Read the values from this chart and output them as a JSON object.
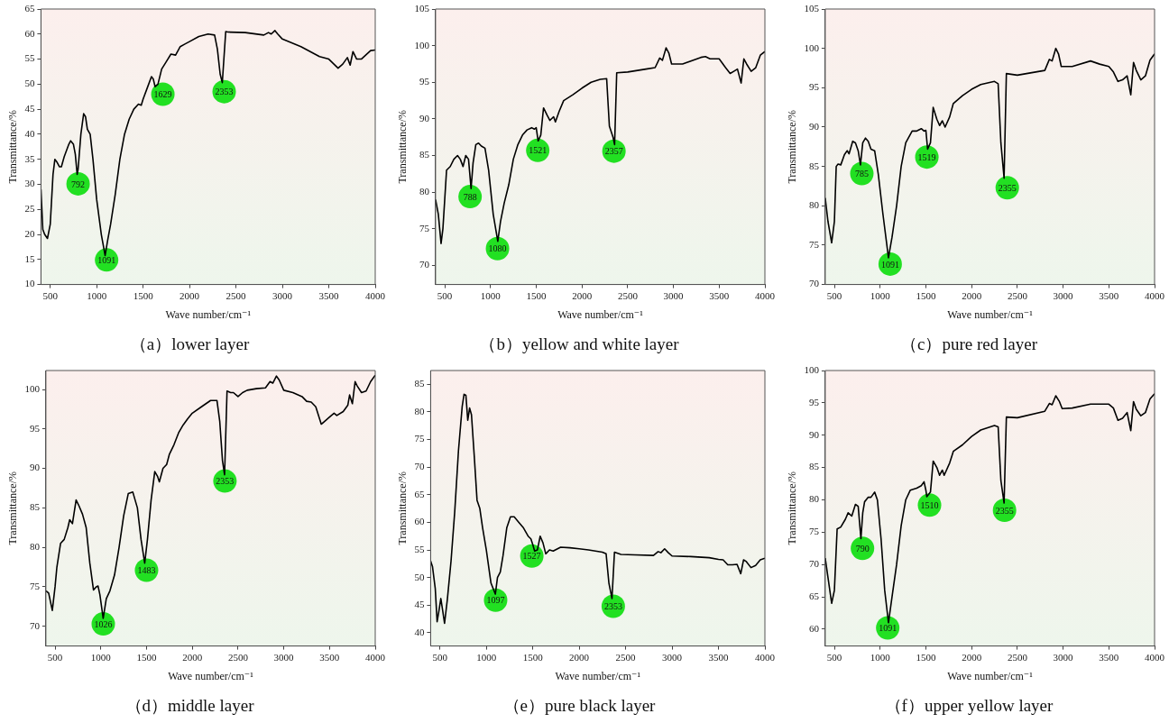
{
  "chart_data": [
    {
      "type": "line",
      "title": "（a）lower layer",
      "xlabel": "Wave number/cm⁻¹",
      "ylabel": "Transmittance/%",
      "xlim": [
        400,
        4000
      ],
      "xticks": [
        500,
        1000,
        1500,
        2000,
        2500,
        3000,
        3500,
        4000
      ],
      "ylim": [
        10,
        65
      ],
      "yticks": [
        10,
        15,
        20,
        25,
        30,
        35,
        40,
        45,
        50,
        55,
        60,
        65
      ],
      "grid": false,
      "legend": false,
      "marker": "none",
      "line_style": "solid",
      "x": [
        400,
        420,
        440,
        470,
        500,
        530,
        550,
        570,
        600,
        620,
        650,
        700,
        720,
        750,
        770,
        790,
        800,
        830,
        860,
        880,
        900,
        930,
        960,
        1000,
        1050,
        1091,
        1120,
        1150,
        1200,
        1250,
        1300,
        1350,
        1400,
        1450,
        1480,
        1500,
        1550,
        1590,
        1610,
        1629,
        1660,
        1700,
        1750,
        1800,
        1850,
        1900,
        1950,
        2000,
        2100,
        2200,
        2270,
        2300,
        2330,
        2353,
        2370,
        2390,
        2410,
        2600,
        2800,
        2850,
        2880,
        2920,
        2950,
        3000,
        3200,
        3400,
        3500,
        3600,
        3650,
        3700,
        3730,
        3760,
        3800,
        3850,
        3950,
        4000
      ],
      "series": [
        {
          "color": "#000000",
          "values": [
            29,
            21,
            20,
            19.2,
            22,
            32,
            35,
            34.5,
            33.5,
            33.5,
            35.5,
            38,
            38.7,
            38,
            36,
            32,
            33,
            40,
            44.1,
            43.5,
            41,
            40,
            35,
            27,
            20,
            15.8,
            19,
            22,
            28,
            35,
            40,
            43,
            45,
            46,
            45.8,
            47,
            49.5,
            51.5,
            51,
            49.5,
            50,
            53,
            54.5,
            56,
            55.8,
            57.5,
            58,
            58.5,
            59.5,
            60,
            59.8,
            57,
            52,
            50.3,
            55,
            60.5,
            60.4,
            60.3,
            59.8,
            60.3,
            60,
            60.7,
            60,
            59,
            57.5,
            55.5,
            55,
            53.2,
            54,
            55.3,
            53.8,
            56.5,
            55,
            55,
            56.7,
            56.8
          ]
        }
      ],
      "annotations": [
        {
          "text": "792",
          "x": 800,
          "y": 30.1
        },
        {
          "text": "1091",
          "x": 1107,
          "y": 14.9
        },
        {
          "text": "1629",
          "x": 1713,
          "y": 48
        },
        {
          "text": "2353",
          "x": 2373,
          "y": 48.5
        }
      ]
    },
    {
      "type": "line",
      "title": "（b）yellow and white layer",
      "xlabel": "Wave number/cm⁻¹",
      "ylabel": "Transmittance/%",
      "xlim": [
        400,
        4000
      ],
      "xticks": [
        500,
        1000,
        1500,
        2000,
        2500,
        3000,
        3500,
        4000
      ],
      "ylim": [
        67.4,
        105
      ],
      "yticks": [
        70,
        75,
        80,
        85,
        90,
        95,
        100,
        105
      ],
      "grid": false,
      "legend": false,
      "marker": "none",
      "line_style": "solid",
      "x": [
        400,
        430,
        460,
        480,
        520,
        560,
        600,
        640,
        670,
        700,
        730,
        760,
        788,
        810,
        840,
        870,
        900,
        940,
        980,
        1030,
        1080,
        1110,
        1150,
        1200,
        1250,
        1300,
        1350,
        1400,
        1450,
        1480,
        1500,
        1521,
        1550,
        1580,
        1620,
        1650,
        1690,
        1710,
        1750,
        1800,
        1900,
        2000,
        2100,
        2200,
        2270,
        2300,
        2340,
        2357,
        2380,
        2500,
        2700,
        2800,
        2850,
        2880,
        2920,
        2950,
        2980,
        3100,
        3300,
        3350,
        3400,
        3500,
        3570,
        3620,
        3660,
        3700,
        3740,
        3770,
        3800,
        3850,
        3900,
        3950,
        4000
      ],
      "series": [
        {
          "color": "#000000",
          "values": [
            79,
            77,
            73,
            75,
            83,
            83.5,
            84.5,
            85,
            84.5,
            83.5,
            85,
            84.5,
            80.5,
            84,
            86.5,
            86.7,
            86.3,
            86,
            83,
            77,
            73.3,
            76,
            78.5,
            81,
            84.5,
            86.5,
            87.8,
            88.5,
            88.8,
            88.6,
            88.8,
            87,
            87.8,
            91.5,
            90.5,
            89.8,
            90.3,
            89.6,
            91,
            92.5,
            93.3,
            94.2,
            95,
            95.4,
            95.5,
            89,
            87.5,
            86.5,
            96.3,
            96.4,
            96.8,
            97,
            98.3,
            98,
            99.7,
            99,
            97.5,
            97.5,
            98.4,
            98.5,
            98.2,
            98.2,
            97,
            96.2,
            96.5,
            96.8,
            94.9,
            98.2,
            97.5,
            96.5,
            97,
            98.7,
            99.2
          ]
        }
      ],
      "annotations": [
        {
          "text": "788",
          "x": 777,
          "y": 79.4
        },
        {
          "text": "1080",
          "x": 1077,
          "y": 72.3
        },
        {
          "text": "1521",
          "x": 1517,
          "y": 85.7
        },
        {
          "text": "2357",
          "x": 2350,
          "y": 85.6
        }
      ]
    },
    {
      "type": "line",
      "title": "（c）pure red layer",
      "xlabel": "Wave number/cm⁻¹",
      "ylabel": "Transmittance/%",
      "xlim": [
        400,
        4000
      ],
      "xticks": [
        500,
        1000,
        1500,
        2000,
        2500,
        3000,
        3500,
        4000
      ],
      "ylim": [
        70,
        105
      ],
      "yticks": [
        70,
        75,
        80,
        85,
        90,
        95,
        100,
        105
      ],
      "grid": false,
      "legend": false,
      "marker": "none",
      "line_style": "solid",
      "x": [
        400,
        430,
        470,
        500,
        520,
        540,
        570,
        610,
        640,
        660,
        700,
        730,
        760,
        785,
        810,
        840,
        870,
        900,
        940,
        980,
        1030,
        1091,
        1130,
        1180,
        1230,
        1280,
        1350,
        1400,
        1450,
        1480,
        1500,
        1519,
        1550,
        1580,
        1620,
        1650,
        1680,
        1710,
        1760,
        1800,
        1900,
        2000,
        2100,
        2250,
        2290,
        2320,
        2355,
        2380,
        2500,
        2700,
        2800,
        2850,
        2880,
        2920,
        2950,
        2980,
        3100,
        3300,
        3400,
        3500,
        3550,
        3600,
        3650,
        3700,
        3740,
        3770,
        3800,
        3850,
        3900,
        3950,
        4000
      ],
      "series": [
        {
          "color": "#000000",
          "values": [
            81,
            78,
            75.3,
            78,
            85,
            85.3,
            85.2,
            86.5,
            87,
            86.6,
            88.2,
            88,
            87,
            85.2,
            88,
            88.6,
            88.2,
            87.2,
            87,
            84,
            79,
            73.4,
            76,
            80,
            85,
            88,
            89.5,
            89.5,
            89.8,
            89.5,
            89.6,
            87.2,
            88,
            92.5,
            91,
            90.2,
            90.8,
            90,
            91.3,
            93,
            94,
            94.8,
            95.4,
            95.8,
            95.5,
            88,
            83.5,
            96.8,
            96.6,
            97,
            97.2,
            98.6,
            98.4,
            100,
            99.3,
            97.7,
            97.7,
            98.4,
            98,
            97.7,
            97,
            95.8,
            96,
            96.5,
            94.1,
            98.2,
            97.2,
            96,
            96.5,
            98.5,
            99.3
          ]
        }
      ],
      "annotations": [
        {
          "text": "785",
          "x": 800,
          "y": 84.1
        },
        {
          "text": "1091",
          "x": 1110,
          "y": 72.6
        },
        {
          "text": "1519",
          "x": 1511,
          "y": 86.2
        },
        {
          "text": "2355",
          "x": 2390,
          "y": 82.3
        }
      ]
    },
    {
      "type": "line",
      "title": "（d）middle layer",
      "xlabel": "Wave number/cm⁻¹",
      "ylabel": "Transmittance/%",
      "xlim": [
        400,
        4000
      ],
      "xticks": [
        500,
        1000,
        1500,
        2000,
        2500,
        3000,
        3500,
        4000
      ],
      "ylim": [
        67.5,
        102.4
      ],
      "yticks": [
        70,
        75,
        80,
        85,
        90,
        95,
        100
      ],
      "grid": false,
      "legend": false,
      "marker": "none",
      "line_style": "solid",
      "x": [
        400,
        430,
        470,
        500,
        520,
        560,
        600,
        640,
        660,
        690,
        730,
        760,
        800,
        840,
        880,
        920,
        950,
        970,
        990,
        1026,
        1060,
        1100,
        1150,
        1200,
        1250,
        1300,
        1350,
        1400,
        1440,
        1480,
        1510,
        1550,
        1590,
        1620,
        1640,
        1680,
        1720,
        1750,
        1800,
        1850,
        1900,
        1950,
        2000,
        2100,
        2200,
        2270,
        2300,
        2330,
        2353,
        2380,
        2420,
        2450,
        2500,
        2550,
        2600,
        2700,
        2800,
        2850,
        2880,
        2920,
        2950,
        3000,
        3100,
        3200,
        3250,
        3300,
        3350,
        3410,
        3450,
        3500,
        3550,
        3580,
        3650,
        3700,
        3720,
        3750,
        3780,
        3800,
        3850,
        3900,
        3950,
        4000
      ],
      "series": [
        {
          "color": "#000000",
          "values": [
            74.5,
            74.2,
            72,
            75,
            77.5,
            80.5,
            81,
            82.5,
            83.5,
            83,
            86,
            85.3,
            84.2,
            82.5,
            78,
            74.6,
            75,
            75.1,
            74,
            71,
            73.5,
            74.5,
            76.5,
            80,
            84,
            86.8,
            87,
            85,
            81,
            78,
            81,
            86,
            89.6,
            89,
            88.3,
            90,
            90.5,
            91.8,
            93,
            94.5,
            95.5,
            96.3,
            97,
            97.8,
            98.6,
            98.6,
            96,
            91,
            89.2,
            99.8,
            99.6,
            99.6,
            99.1,
            99.6,
            99.9,
            100.1,
            100.2,
            101,
            100.8,
            101.7,
            101.2,
            99.9,
            99.6,
            99.1,
            98.5,
            98.4,
            97.8,
            95.6,
            96,
            96.5,
            97,
            96.7,
            97.2,
            98,
            99.3,
            98.2,
            101,
            100.5,
            99.6,
            99.8,
            101,
            101.8
          ]
        }
      ],
      "annotations": [
        {
          "text": "1026",
          "x": 1027,
          "y": 70.3
        },
        {
          "text": "1483",
          "x": 1500,
          "y": 77.1
        },
        {
          "text": "2353",
          "x": 2357,
          "y": 88.4
        }
      ]
    },
    {
      "type": "line",
      "title": "（e）pure black layer",
      "xlabel": "Wave number/cm⁻¹",
      "ylabel": "Transmittance/%",
      "xlim": [
        400,
        4000
      ],
      "xticks": [
        500,
        1000,
        1500,
        2000,
        2500,
        3000,
        3500,
        4000
      ],
      "ylim": [
        37.6,
        87.5
      ],
      "yticks": [
        40,
        45,
        50,
        55,
        60,
        65,
        70,
        75,
        80,
        85
      ],
      "grid": false,
      "legend": false,
      "marker": "none",
      "line_style": "solid",
      "x": [
        400,
        420,
        450,
        470,
        490,
        510,
        530,
        550,
        580,
        620,
        660,
        700,
        740,
        760,
        780,
        800,
        820,
        840,
        870,
        900,
        930,
        960,
        1000,
        1050,
        1097,
        1120,
        1150,
        1180,
        1220,
        1260,
        1300,
        1350,
        1400,
        1450,
        1480,
        1500,
        1520,
        1550,
        1580,
        1610,
        1640,
        1680,
        1720,
        1800,
        1900,
        2000,
        2100,
        2250,
        2290,
        2320,
        2353,
        2380,
        2450,
        2600,
        2800,
        2850,
        2880,
        2920,
        2960,
        3000,
        3200,
        3400,
        3500,
        3550,
        3600,
        3650,
        3700,
        3740,
        3770,
        3800,
        3850,
        3900,
        3950,
        4000
      ],
      "series": [
        {
          "color": "#000000",
          "values": [
            53,
            52,
            48,
            42,
            44,
            46.2,
            44,
            41.7,
            46,
            53,
            62,
            73,
            81,
            83.2,
            83,
            78.5,
            80.7,
            79.5,
            72,
            64,
            62.5,
            59,
            55,
            49,
            47,
            50,
            51,
            54,
            59,
            61,
            61,
            60,
            59,
            57.5,
            57,
            56,
            54.8,
            55,
            57.5,
            56.3,
            54.3,
            55,
            54.8,
            55.5,
            55.4,
            55.2,
            55,
            54.6,
            54.3,
            49,
            46.2,
            54.6,
            54.2,
            54.1,
            54,
            54.7,
            54.5,
            55.2,
            54.5,
            53.9,
            53.8,
            53.6,
            53.3,
            53.2,
            52.3,
            52.3,
            52.4,
            50.7,
            53.2,
            52.9,
            51.8,
            52.2,
            53.2,
            53.5
          ]
        }
      ],
      "annotations": [
        {
          "text": "1097",
          "x": 1100,
          "y": 45.9
        },
        {
          "text": "1527",
          "x": 1490,
          "y": 53.9
        },
        {
          "text": "2353",
          "x": 2367,
          "y": 44.8
        }
      ]
    },
    {
      "type": "line",
      "title": "（f）upper yellow layer",
      "xlabel": "Wave number/cm⁻¹",
      "ylabel": "Transmittance/%",
      "xlim": [
        400,
        4000
      ],
      "xticks": [
        500,
        1000,
        1500,
        2000,
        2500,
        3000,
        3500,
        4000
      ],
      "ylim": [
        57.4,
        100
      ],
      "yticks": [
        60,
        65,
        70,
        75,
        80,
        85,
        90,
        95,
        100
      ],
      "grid": false,
      "legend": false,
      "marker": "none",
      "line_style": "solid",
      "x": [
        400,
        430,
        470,
        500,
        530,
        570,
        620,
        650,
        690,
        730,
        760,
        790,
        810,
        830,
        870,
        900,
        940,
        970,
        1010,
        1050,
        1091,
        1130,
        1180,
        1230,
        1280,
        1330,
        1400,
        1450,
        1480,
        1500,
        1510,
        1550,
        1580,
        1620,
        1650,
        1680,
        1700,
        1760,
        1800,
        1900,
        2000,
        2100,
        2250,
        2290,
        2320,
        2355,
        2380,
        2500,
        2800,
        2850,
        2880,
        2920,
        2960,
        2990,
        3100,
        3300,
        3500,
        3550,
        3600,
        3650,
        3700,
        3740,
        3770,
        3800,
        3850,
        3900,
        3950,
        4000
      ],
      "series": [
        {
          "color": "#000000",
          "values": [
            71,
            68,
            64,
            66,
            75.5,
            75.8,
            77,
            78,
            77.5,
            79.3,
            79,
            74,
            78,
            79.7,
            80.4,
            80.4,
            81.2,
            80,
            74,
            66,
            61,
            65,
            70,
            76,
            80,
            81.5,
            81.8,
            82.2,
            82.8,
            81.5,
            80.5,
            81.2,
            86,
            85,
            83.8,
            84.6,
            83.8,
            85.7,
            87.5,
            88.5,
            89.8,
            90.8,
            91.5,
            91.3,
            83,
            79.5,
            92.8,
            92.7,
            93.7,
            94.9,
            94.7,
            96.1,
            95.2,
            94.1,
            94.2,
            94.8,
            94.8,
            94.2,
            92.3,
            92.6,
            93.5,
            90.7,
            95.2,
            94,
            93,
            93.5,
            95.6,
            96.4
          ]
        }
      ],
      "annotations": [
        {
          "text": "790",
          "x": 807,
          "y": 72.5
        },
        {
          "text": "1091",
          "x": 1083,
          "y": 60.2
        },
        {
          "text": "1510",
          "x": 1540,
          "y": 79.2
        },
        {
          "text": "2355",
          "x": 2360,
          "y": 78.4
        }
      ]
    }
  ]
}
